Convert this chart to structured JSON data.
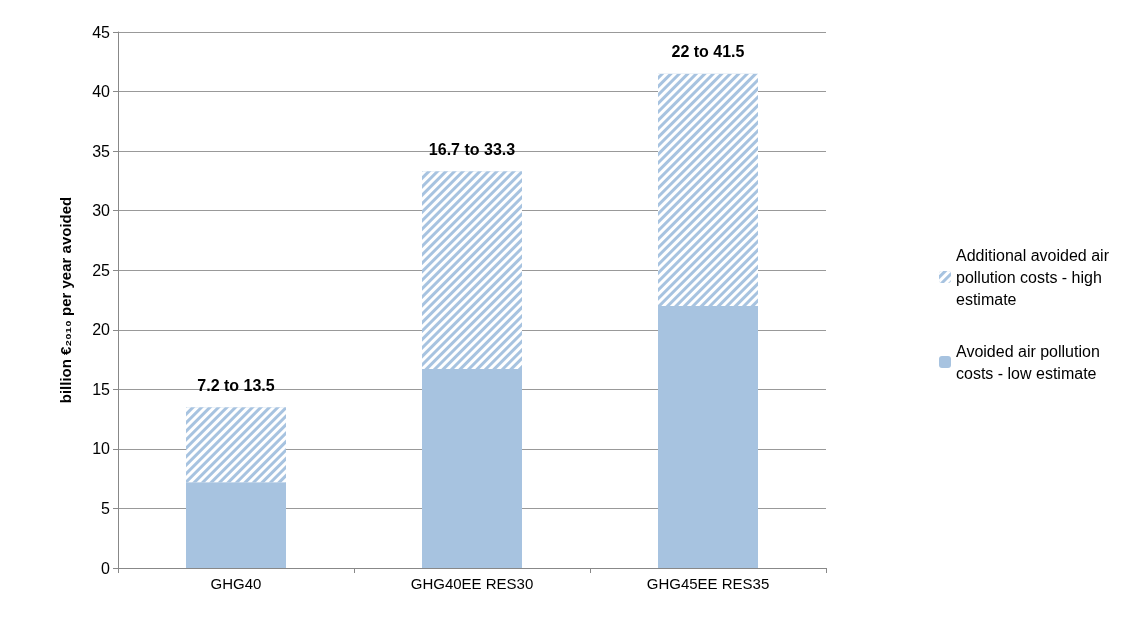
{
  "chart_data": {
    "type": "bar",
    "stacked": true,
    "ylabel": "billion €₂₀₁₀ per year avoided",
    "categories": [
      "GHG40",
      "GHG40EE RES30",
      "GHG45EE RES35"
    ],
    "series": [
      {
        "name": "Avoided air pollution costs - low estimate",
        "color": "#a7c3e0",
        "values": [
          7.2,
          16.7,
          22
        ]
      },
      {
        "name": "Additional avoided air pollution costs - high estimate",
        "color": "#a7c3e0",
        "values": [
          6.3,
          16.6,
          19.5
        ]
      }
    ],
    "ylim": [
      0,
      45
    ],
    "yticks": [
      0,
      5,
      10,
      15,
      20,
      25,
      30,
      35,
      40,
      45
    ],
    "grid": "y",
    "legend": "right",
    "annotations": [
      {
        "text": "7.2 to 13.5",
        "x": "GHG40",
        "y": 13.5
      },
      {
        "text": "16.7 to 33.3",
        "x": "GHG40EE RES30",
        "y": 33.3
      },
      {
        "text": "22 to 41.5",
        "x": "GHG45EE RES35",
        "y": 41.5
      }
    ]
  }
}
